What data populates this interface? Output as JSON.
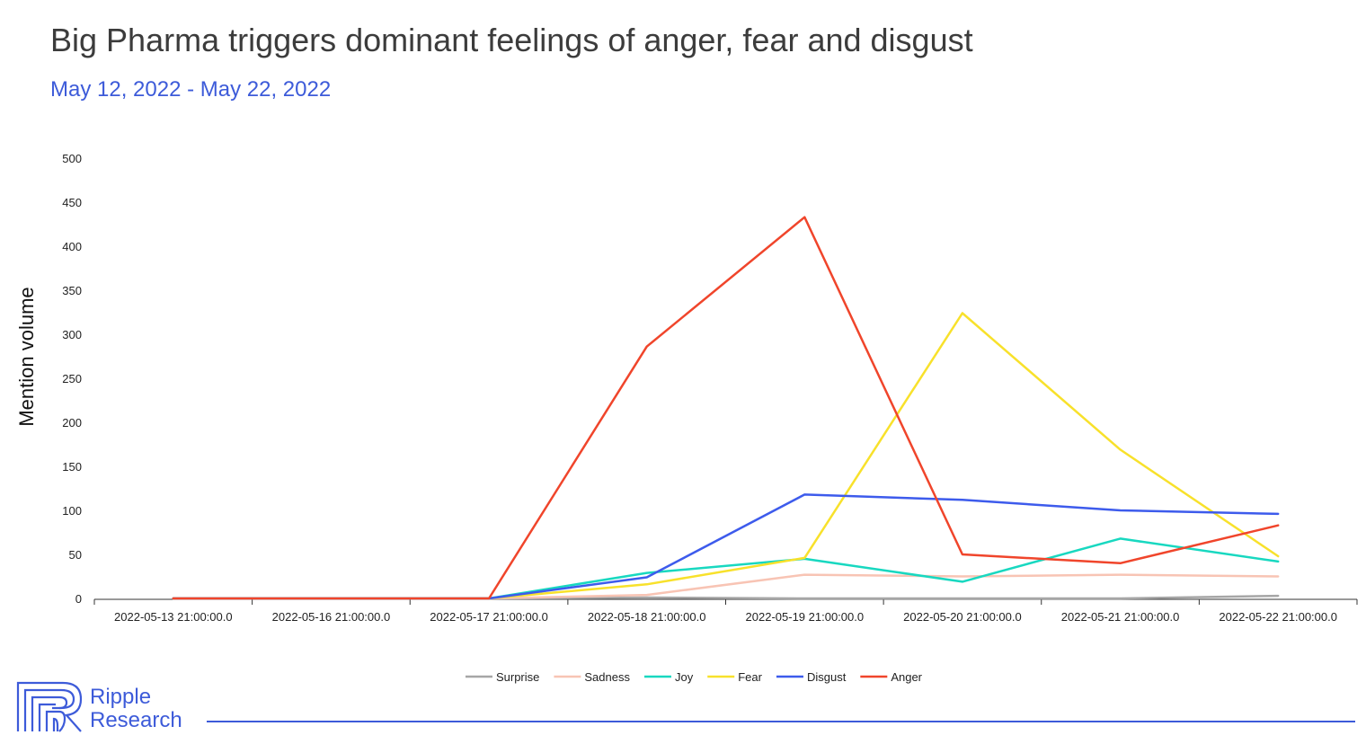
{
  "header": {
    "title": "Big Pharma triggers dominant feelings of anger, fear and disgust",
    "subtitle": "May 12, 2022 - May 22, 2022"
  },
  "brand": {
    "name_line1": "Ripple",
    "name_line2": "Research",
    "color": "#3d5bd9"
  },
  "chart_data": {
    "type": "line",
    "title": "Big Pharma triggers dominant feelings of anger, fear and disgust",
    "subtitle": "May 12, 2022 - May 22, 2022",
    "xlabel": "",
    "ylabel": "Mention volume",
    "ylim": [
      0,
      500
    ],
    "yticks": [
      0,
      50,
      100,
      150,
      200,
      250,
      300,
      350,
      400,
      450,
      500
    ],
    "grid": false,
    "legend_position": "bottom",
    "categories": [
      "2022-05-13 21:00:00.0",
      "2022-05-16 21:00:00.0",
      "2022-05-17 21:00:00.0",
      "2022-05-18 21:00:00.0",
      "2022-05-19 21:00:00.0",
      "2022-05-20 21:00:00.0",
      "2022-05-21 21:00:00.0",
      "2022-05-22 21:00:00.0"
    ],
    "series": [
      {
        "name": "Surprise",
        "color": "#a6a6a6",
        "values": [
          1,
          1,
          1,
          2,
          1,
          1,
          1,
          4
        ]
      },
      {
        "name": "Sadness",
        "color": "#f8c4b4",
        "values": [
          1,
          1,
          1,
          5,
          28,
          26,
          28,
          26
        ]
      },
      {
        "name": "Joy",
        "color": "#18d8c0",
        "values": [
          1,
          1,
          1,
          30,
          46,
          20,
          69,
          43
        ]
      },
      {
        "name": "Fear",
        "color": "#f8e12b",
        "values": [
          1,
          1,
          1,
          17,
          47,
          325,
          170,
          49
        ]
      },
      {
        "name": "Disgust",
        "color": "#3d5bec",
        "values": [
          1,
          1,
          1,
          25,
          119,
          113,
          101,
          97
        ]
      },
      {
        "name": "Anger",
        "color": "#f0452b",
        "values": [
          1,
          1,
          1,
          287,
          434,
          51,
          41,
          84
        ]
      }
    ]
  }
}
